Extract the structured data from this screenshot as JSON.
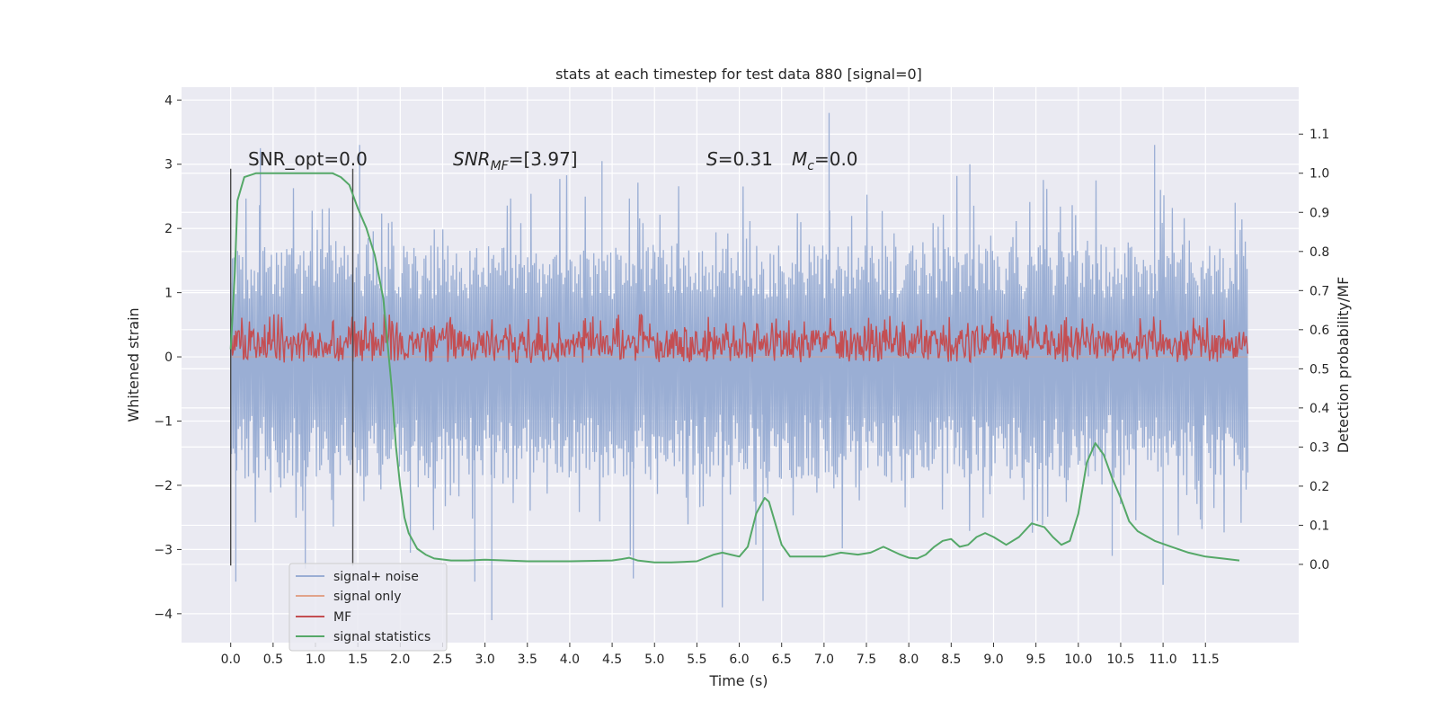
{
  "chart_data": {
    "type": "line",
    "title": "stats at each timestep for test data 880 [signal=0]",
    "xlabel": "Time (s)",
    "ylabel": "Whitened strain",
    "y2label": "Detection probability/MF",
    "xlim": [
      -0.58,
      12.6
    ],
    "ylim": [
      -4.45,
      4.2
    ],
    "y2lim": [
      -0.2,
      1.22
    ],
    "xticks": [
      "0.0",
      "0.5",
      "1.0",
      "1.5",
      "2.0",
      "2.5",
      "3.0",
      "3.5",
      "4.0",
      "4.5",
      "5.0",
      "5.5",
      "6.0",
      "6.5",
      "7.0",
      "7.5",
      "8.0",
      "8.5",
      "9.0",
      "9.5",
      "10.0",
      "10.5",
      "11.0",
      "11.5"
    ],
    "yticks": [
      "4",
      "3",
      "2",
      "1",
      "0",
      "−1",
      "−2",
      "−3",
      "−4"
    ],
    "y2ticks": [
      "1.1",
      "1.0",
      "0.9",
      "0.8",
      "0.7",
      "0.6",
      "0.5",
      "0.4",
      "0.3",
      "0.2",
      "0.1",
      "0.0"
    ],
    "grid": true,
    "legend_position": "lower-left",
    "colors": {
      "background": "#eaeaf2",
      "grid": "#ffffff",
      "signal_noise": "#9aaed4",
      "signal_only": "#e1a38a",
      "mf": "#c44e52",
      "statistics": "#55a868",
      "window_line": "#4a4a4a"
    },
    "annotations": {
      "snr_opt": "SNR_opt=0.0",
      "snr_mf_name": "SNR",
      "snr_mf_sub": "MF",
      "snr_mf_value": "=[3.97]",
      "s_name": "S",
      "s_value": "=0.31",
      "mc_name": "M",
      "mc_sub": "c",
      "mc_value": "=0.0"
    },
    "window_lines": [
      0.0,
      1.44
    ],
    "series": [
      {
        "name": "signal+ noise",
        "axis": "left",
        "t_range": [
          0.0,
          12.0
        ],
        "samples": 1200,
        "typical_range": [
          -1.9,
          1.75
        ],
        "extremes": [
          {
            "t": 0.06,
            "y": -3.5
          },
          {
            "t": 0.35,
            "y": 3.25
          },
          {
            "t": 0.88,
            "y": -3.3
          },
          {
            "t": 1.52,
            "y": 3.3
          },
          {
            "t": 2.12,
            "y": -3.05
          },
          {
            "t": 2.88,
            "y": -3.5
          },
          {
            "t": 3.08,
            "y": -4.1
          },
          {
            "t": 4.38,
            "y": 3.05
          },
          {
            "t": 4.75,
            "y": -3.45
          },
          {
            "t": 5.8,
            "y": -3.9
          },
          {
            "t": 6.28,
            "y": -3.8
          },
          {
            "t": 7.06,
            "y": 3.8
          },
          {
            "t": 8.72,
            "y": 3.0
          },
          {
            "t": 10.4,
            "y": -3.1
          },
          {
            "t": 10.9,
            "y": 3.3
          },
          {
            "t": 11.0,
            "y": -3.55
          },
          {
            "t": 11.85,
            "y": 2.4
          }
        ]
      },
      {
        "name": "signal only",
        "axis": "left",
        "constant": 0
      },
      {
        "name": "MF",
        "axis": "right",
        "t_range": [
          0.0,
          12.0
        ],
        "samples": 1200,
        "typical_range": [
          0.53,
          0.6
        ],
        "max": 0.64
      },
      {
        "name": "signal statistics",
        "axis": "right",
        "x": [
          0.0,
          0.05,
          0.08,
          0.16,
          0.3,
          0.5,
          0.8,
          1.0,
          1.2,
          1.3,
          1.4,
          1.5,
          1.6,
          1.7,
          1.8,
          1.9,
          1.95,
          2.0,
          2.05,
          2.1,
          2.2,
          2.3,
          2.4,
          2.6,
          2.8,
          3.0,
          3.5,
          4.0,
          4.5,
          4.6,
          4.7,
          4.8,
          5.0,
          5.2,
          5.5,
          5.7,
          5.8,
          5.9,
          6.0,
          6.1,
          6.2,
          6.3,
          6.35,
          6.5,
          6.6,
          6.8,
          7.0,
          7.2,
          7.4,
          7.55,
          7.7,
          7.9,
          8.0,
          8.1,
          8.2,
          8.3,
          8.4,
          8.5,
          8.6,
          8.7,
          8.8,
          8.9,
          9.0,
          9.15,
          9.3,
          9.45,
          9.6,
          9.7,
          9.8,
          9.9,
          10.0,
          10.1,
          10.2,
          10.3,
          10.4,
          10.5,
          10.6,
          10.7,
          10.9,
          11.1,
          11.3,
          11.5,
          11.7,
          11.9
        ],
        "values": [
          0.55,
          0.75,
          0.93,
          0.99,
          1.0,
          1.0,
          1.0,
          1.0,
          1.0,
          0.99,
          0.97,
          0.91,
          0.86,
          0.79,
          0.68,
          0.45,
          0.3,
          0.2,
          0.12,
          0.08,
          0.04,
          0.025,
          0.015,
          0.01,
          0.01,
          0.012,
          0.008,
          0.008,
          0.01,
          0.013,
          0.017,
          0.01,
          0.005,
          0.005,
          0.008,
          0.025,
          0.03,
          0.025,
          0.02,
          0.045,
          0.13,
          0.17,
          0.16,
          0.05,
          0.02,
          0.02,
          0.02,
          0.03,
          0.025,
          0.03,
          0.045,
          0.025,
          0.017,
          0.015,
          0.025,
          0.045,
          0.06,
          0.065,
          0.045,
          0.05,
          0.07,
          0.08,
          0.07,
          0.05,
          0.07,
          0.105,
          0.095,
          0.07,
          0.05,
          0.06,
          0.13,
          0.26,
          0.31,
          0.28,
          0.22,
          0.17,
          0.11,
          0.085,
          0.06,
          0.045,
          0.03,
          0.02,
          0.015,
          0.01
        ]
      }
    ]
  }
}
